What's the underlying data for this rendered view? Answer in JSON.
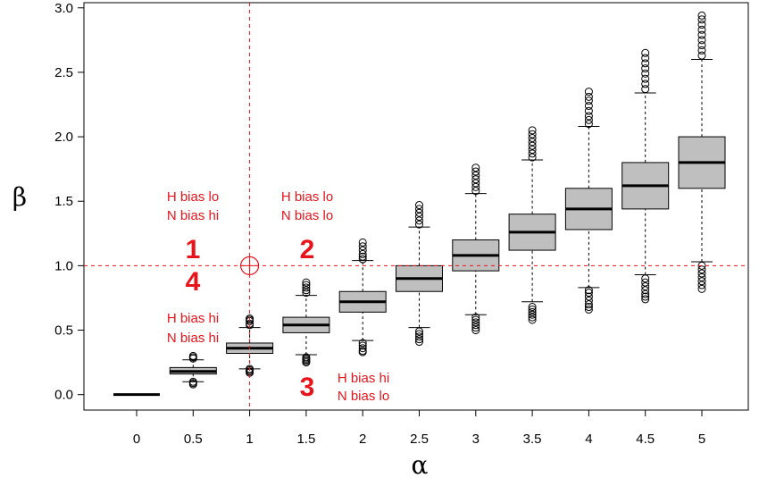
{
  "chart_data": {
    "type": "boxplot",
    "xlabel": "α",
    "ylabel": "β",
    "ylim": [
      -0.12,
      3.04
    ],
    "y_ticks": [
      "0.0",
      "0.5",
      "1.0",
      "1.5",
      "2.0",
      "2.5",
      "3.0"
    ],
    "y_tick_values": [
      0,
      0.5,
      1.0,
      1.5,
      2.0,
      2.5,
      3.0
    ],
    "categories": [
      "0",
      "0.5",
      "1",
      "1.5",
      "2",
      "2.5",
      "3",
      "3.5",
      "4",
      "4.5",
      "5"
    ],
    "grid": false,
    "box_fill": "#bfbfbf",
    "boxes": [
      {
        "x": "0",
        "wlo": 0.0,
        "q1": 0.0,
        "med": 0.0,
        "q3": 0.0,
        "whi": 0.0,
        "outliers": []
      },
      {
        "x": "0.5",
        "wlo": 0.1,
        "q1": 0.16,
        "med": 0.18,
        "q3": 0.21,
        "whi": 0.27,
        "outliers": [
          0.08,
          0.09,
          0.1,
          0.28,
          0.29,
          0.3
        ]
      },
      {
        "x": "1",
        "wlo": 0.2,
        "q1": 0.32,
        "med": 0.36,
        "q3": 0.4,
        "whi": 0.52,
        "outliers": [
          0.17,
          0.18,
          0.19,
          0.2,
          0.54,
          0.55,
          0.57,
          0.58,
          0.59
        ]
      },
      {
        "x": "1.5",
        "wlo": 0.31,
        "q1": 0.48,
        "med": 0.54,
        "q3": 0.6,
        "whi": 0.77,
        "outliers": [
          0.25,
          0.26,
          0.27,
          0.28,
          0.29,
          0.79,
          0.81,
          0.83,
          0.85,
          0.87
        ]
      },
      {
        "x": "2",
        "wlo": 0.42,
        "q1": 0.64,
        "med": 0.72,
        "q3": 0.8,
        "whi": 1.04,
        "outliers": [
          0.33,
          0.34,
          0.36,
          0.38,
          0.4,
          1.05,
          1.07,
          1.09,
          1.12,
          1.15,
          1.18
        ]
      },
      {
        "x": "2.5",
        "wlo": 0.52,
        "q1": 0.8,
        "med": 0.9,
        "q3": 1.0,
        "whi": 1.3,
        "outliers": [
          0.41,
          0.43,
          0.45,
          0.47,
          0.49,
          1.32,
          1.35,
          1.38,
          1.41,
          1.44,
          1.47
        ]
      },
      {
        "x": "3",
        "wlo": 0.62,
        "q1": 0.96,
        "med": 1.08,
        "q3": 1.2,
        "whi": 1.56,
        "outliers": [
          0.5,
          0.52,
          0.54,
          0.56,
          0.58,
          0.6,
          1.58,
          1.61,
          1.64,
          1.67,
          1.7,
          1.73,
          1.76
        ]
      },
      {
        "x": "3.5",
        "wlo": 0.72,
        "q1": 1.12,
        "med": 1.26,
        "q3": 1.4,
        "whi": 1.82,
        "outliers": [
          0.58,
          0.6,
          0.62,
          0.64,
          0.66,
          0.68,
          1.84,
          1.87,
          1.9,
          1.93,
          1.96,
          1.99,
          2.02,
          2.05
        ]
      },
      {
        "x": "4",
        "wlo": 0.83,
        "q1": 1.28,
        "med": 1.44,
        "q3": 1.6,
        "whi": 2.08,
        "outliers": [
          0.66,
          0.68,
          0.7,
          0.73,
          0.76,
          0.79,
          0.81,
          2.1,
          2.13,
          2.16,
          2.2,
          2.24,
          2.28,
          2.31,
          2.35
        ]
      },
      {
        "x": "4.5",
        "wlo": 0.93,
        "q1": 1.44,
        "med": 1.62,
        "q3": 1.8,
        "whi": 2.34,
        "outliers": [
          0.74,
          0.76,
          0.78,
          0.81,
          0.84,
          0.87,
          0.9,
          2.37,
          2.41,
          2.45,
          2.49,
          2.53,
          2.57,
          2.61,
          2.65
        ]
      },
      {
        "x": "5",
        "wlo": 1.03,
        "q1": 1.6,
        "med": 1.8,
        "q3": 2.0,
        "whi": 2.6,
        "outliers": [
          0.82,
          0.85,
          0.88,
          0.91,
          0.94,
          0.97,
          1.0,
          2.63,
          2.67,
          2.71,
          2.75,
          2.79,
          2.83,
          2.87,
          2.91,
          2.94
        ]
      }
    ],
    "reference_lines": {
      "x": "1",
      "y": 1.0,
      "color": "#e8141b",
      "style": "dashed"
    },
    "reference_point": {
      "x": "1",
      "y": 1.0
    },
    "annotation_color": "#e8141b",
    "annotations": [
      {
        "id": "q1",
        "number": "1",
        "line1": "H bias lo",
        "line2": "N bias hi"
      },
      {
        "id": "q2",
        "number": "2",
        "line1": "H bias lo",
        "line2": "N bias lo"
      },
      {
        "id": "q3",
        "number": "3",
        "line1": "H bias hi",
        "line2": "N bias lo"
      },
      {
        "id": "q4",
        "number": "4",
        "line1": "H bias hi",
        "line2": "N bias hi"
      }
    ]
  }
}
